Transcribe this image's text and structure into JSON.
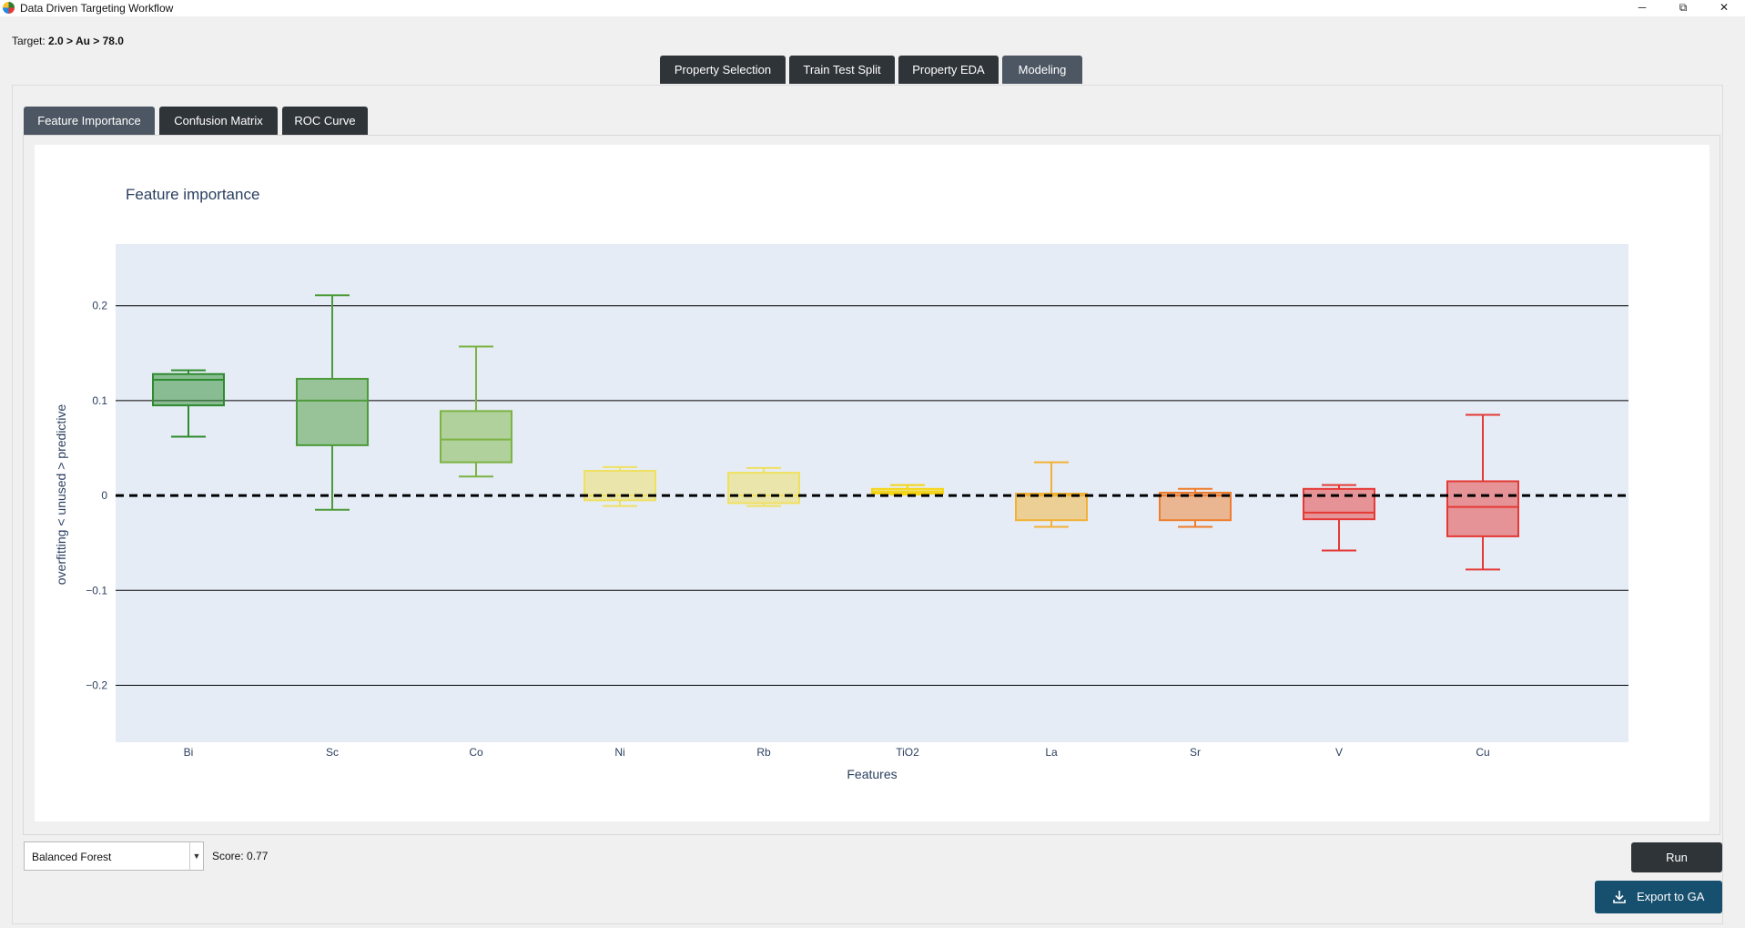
{
  "window": {
    "title": "Data Driven Targeting Workflow",
    "minimize": "─",
    "restore": "⧉",
    "close": "✕"
  },
  "target": {
    "label": "Target:",
    "expression": "2.0 > Au > 78.0"
  },
  "main_tabs": [
    {
      "label": "Property Selection",
      "active": false
    },
    {
      "label": "Train Test Split",
      "active": false
    },
    {
      "label": "Property EDA",
      "active": false
    },
    {
      "label": "Modeling",
      "active": true
    }
  ],
  "sub_tabs": [
    {
      "label": "Feature Importance",
      "active": true
    },
    {
      "label": "Confusion Matrix",
      "active": false
    },
    {
      "label": "ROC Curve",
      "active": false
    }
  ],
  "chart_data": {
    "type": "box",
    "title": "Feature importance",
    "xlabel": "Features",
    "ylabel": "overfitting < unused > predictive",
    "ylim": [
      -0.26,
      0.265
    ],
    "yticks": [
      0.2,
      0.1,
      0,
      -0.1,
      -0.2
    ],
    "ytick_labels": [
      "0.2",
      "0.1",
      "0",
      "−0.1",
      "−0.2"
    ],
    "grid": true,
    "zero_line": "dashed",
    "series": [
      {
        "category": "Bi",
        "min": 0.062,
        "q1": 0.095,
        "median": 0.122,
        "q3": 0.128,
        "max": 0.132,
        "color": "#2e8b2e"
      },
      {
        "category": "Sc",
        "min": -0.015,
        "q1": 0.053,
        "median": 0.1,
        "q3": 0.123,
        "max": 0.211,
        "color": "#4c9a3a"
      },
      {
        "category": "Co",
        "min": 0.02,
        "q1": 0.035,
        "median": 0.059,
        "q3": 0.089,
        "max": 0.157,
        "color": "#7cb342"
      },
      {
        "category": "Ni",
        "min": -0.011,
        "q1": -0.005,
        "median": 0.0,
        "q3": 0.026,
        "max": 0.03,
        "color": "#f0e060"
      },
      {
        "category": "Rb",
        "min": -0.011,
        "q1": -0.008,
        "median": 0.0,
        "q3": 0.024,
        "max": 0.029,
        "color": "#f0e060"
      },
      {
        "category": "TiO2",
        "min": 0.001,
        "q1": 0.002,
        "median": 0.004,
        "q3": 0.007,
        "max": 0.011,
        "color": "#f5d515"
      },
      {
        "category": "La",
        "min": -0.033,
        "q1": -0.026,
        "median": 0.0,
        "q3": 0.002,
        "max": 0.035,
        "color": "#f2b134"
      },
      {
        "category": "Sr",
        "min": -0.033,
        "q1": -0.026,
        "median": 0.0,
        "q3": 0.003,
        "max": 0.007,
        "color": "#ef7d2c"
      },
      {
        "category": "V",
        "min": -0.058,
        "q1": -0.025,
        "median": -0.018,
        "q3": 0.007,
        "max": 0.011,
        "color": "#e53935"
      },
      {
        "category": "Cu",
        "min": -0.078,
        "q1": -0.043,
        "median": -0.012,
        "q3": 0.015,
        "max": 0.085,
        "color": "#e53935"
      }
    ]
  },
  "controls": {
    "model_selected": "Balanced Forest",
    "score": "Score: 0.77",
    "run_label": "Run",
    "export_label": "Export to GA"
  }
}
